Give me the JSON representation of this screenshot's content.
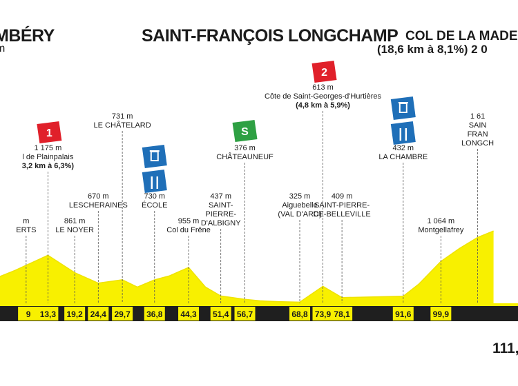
{
  "header": {
    "start": "MBÉRY",
    "start_sub": "m",
    "finish": "SAINT-FRANÇOIS LONGCHAMP",
    "col": "COL DE LA MADEI",
    "col_sub": "(18,6 km à 8,1%) 2 0",
    "total": "111,"
  },
  "colors": {
    "profile_fill": "#f8f000",
    "profile_top": "#efe300",
    "axis_bar": "#1f1f1f",
    "climb_red": "#e0202a",
    "sprint_green": "#2ea043",
    "feed_blue": "#1f6fb8"
  },
  "chart_data": {
    "type": "area",
    "title": "",
    "xlabel": "",
    "ylabel": "",
    "x_ticks": [
      "9",
      "13,3",
      "19,2",
      "24,4",
      "29,7",
      "36,8",
      "44,3",
      "51,4",
      "56,7",
      "68,8",
      "73,9",
      "78,1",
      "91,6",
      "99,9"
    ],
    "x": [
      0,
      6,
      13.3,
      19.2,
      24.4,
      29.7,
      33,
      36.8,
      40,
      44.3,
      48,
      51.4,
      56.7,
      60,
      64,
      68.8,
      73.9,
      78.1,
      85,
      91.6,
      95,
      99.9,
      104,
      108,
      111.5
    ],
    "y": [
      700,
      900,
      1175,
      861,
      670,
      731,
      600,
      730,
      800,
      955,
      600,
      437,
      376,
      350,
      335,
      325,
      613,
      409,
      420,
      432,
      650,
      1064,
      1300,
      1500,
      1616
    ],
    "labels": [
      {
        "km": 8.5,
        "lines": [
          "m",
          "ERTS"
        ],
        "row": 1
      },
      {
        "km": 13.3,
        "lines": [
          "1 175 m",
          "l de Plainpalais",
          "3,2 km à 6,3%)"
        ],
        "row": 3,
        "badge": "1",
        "badge_type": "climb"
      },
      {
        "km": 19.2,
        "lines": [
          "861 m",
          "LE NOYER"
        ],
        "row": 1
      },
      {
        "km": 24.4,
        "lines": [
          "670 m",
          "LESCHERAINES"
        ],
        "row": 2
      },
      {
        "km": 29.7,
        "lines": [
          "731 m",
          "LE CHÂTELARD"
        ],
        "row": 4
      },
      {
        "km": 36.8,
        "lines": [
          "730 m",
          "ÉCOLE"
        ],
        "row": 2,
        "badge": "feed",
        "badge_type": "feed"
      },
      {
        "km": 44.3,
        "lines": [
          "955 m",
          "Col du Frêne"
        ],
        "row": 1
      },
      {
        "km": 51.4,
        "lines": [
          "437 m",
          "SAINT-",
          "PIERRE-",
          "D'ALBIGNY"
        ],
        "row": 2
      },
      {
        "km": 56.7,
        "lines": [
          "376 m",
          "CHÂTEAUNEUF"
        ],
        "row": 3,
        "badge": "S",
        "badge_type": "sprint"
      },
      {
        "km": 68.8,
        "lines": [
          "325 m",
          "Aiguebelle",
          "(VAL D'ARC)"
        ],
        "row": 2
      },
      {
        "km": 73.9,
        "lines": [
          "613 m",
          "Côte de Saint-Georges-d'Hurtières",
          "(4,8 km à 5,9%)"
        ],
        "row": 5,
        "badge": "2",
        "badge_type": "climb"
      },
      {
        "km": 78.1,
        "lines": [
          "409 m",
          "SAINT-PIERRE-",
          "DE-BELLEVILLE"
        ],
        "row": 2
      },
      {
        "km": 91.6,
        "lines": [
          "432 m",
          "LA CHAMBRE"
        ],
        "row": 3,
        "badge": "feed",
        "badge_type": "feed"
      },
      {
        "km": 99.9,
        "lines": [
          "1 064 m",
          "Montgellafrey"
        ],
        "row": 1
      },
      {
        "km": 108,
        "lines": [
          "1 61",
          "SAIN",
          "FRAN",
          "LONGCH"
        ],
        "row": 4
      }
    ]
  }
}
